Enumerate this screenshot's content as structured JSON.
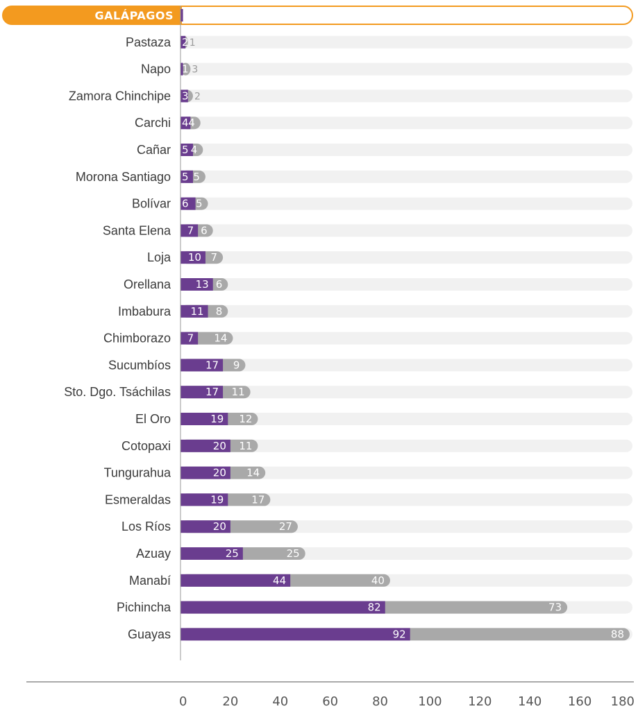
{
  "chart_data": {
    "type": "bar",
    "orientation": "horizontal",
    "stacked": true,
    "highlighted_category": "GALÁPAGOS",
    "categories": [
      "GALÁPAGOS",
      "Pastaza",
      "Napo",
      "Zamora Chinchipe",
      "Carchi",
      "Cañar",
      "Morona Santiago",
      "Bolívar",
      "Santa Elena",
      "Loja",
      "Orellana",
      "Imbabura",
      "Chimborazo",
      "Sucumbíos",
      "Sto. Dgo. Tsáchilas",
      "El Oro",
      "Cotopaxi",
      "Tungurahua",
      "Esmeraldas",
      "Los Ríos",
      "Azuay",
      "Manabí",
      "Pichincha",
      "Guayas"
    ],
    "series": [
      {
        "values": [
          1,
          2,
          1,
          3,
          4,
          5,
          5,
          6,
          7,
          10,
          13,
          11,
          7,
          17,
          17,
          19,
          20,
          20,
          19,
          20,
          25,
          44,
          82,
          92
        ]
      },
      {
        "values": [
          null,
          1,
          3,
          2,
          4,
          4,
          5,
          5,
          6,
          7,
          6,
          8,
          14,
          9,
          11,
          12,
          11,
          14,
          17,
          27,
          25,
          40,
          73,
          88
        ]
      }
    ],
    "value_labels": [
      [
        "1",
        ""
      ],
      [
        "2",
        "1"
      ],
      [
        "1",
        "3"
      ],
      [
        "3",
        "2"
      ],
      [
        "4",
        "4"
      ],
      [
        "5",
        "4"
      ],
      [
        "5",
        "5"
      ],
      [
        "6",
        "5"
      ],
      [
        "7",
        "6"
      ],
      [
        "10",
        "7"
      ],
      [
        "13",
        "6"
      ],
      [
        "11",
        "8"
      ],
      [
        "7",
        "14"
      ],
      [
        "17",
        "9"
      ],
      [
        "17",
        "11"
      ],
      [
        "19",
        "12"
      ],
      [
        "20",
        "11"
      ],
      [
        "20",
        "14"
      ],
      [
        "19",
        "17"
      ],
      [
        "20",
        "27"
      ],
      [
        "25",
        "25"
      ],
      [
        "44",
        "40"
      ],
      [
        "82",
        "73"
      ],
      [
        "92",
        "88"
      ]
    ],
    "xlim": [
      0,
      180
    ],
    "xticks": [
      "0",
      "20",
      "40",
      "60",
      "80",
      "100",
      "120",
      "140",
      "160",
      "180"
    ],
    "title": "",
    "xlabel": "",
    "ylabel": "",
    "grid": false,
    "colors": {
      "series1": "#6a3d8f",
      "series2": "#a9a9a9",
      "track": "#f1f1f1",
      "highlight": "#f39a1f",
      "axis": "#888888"
    }
  }
}
